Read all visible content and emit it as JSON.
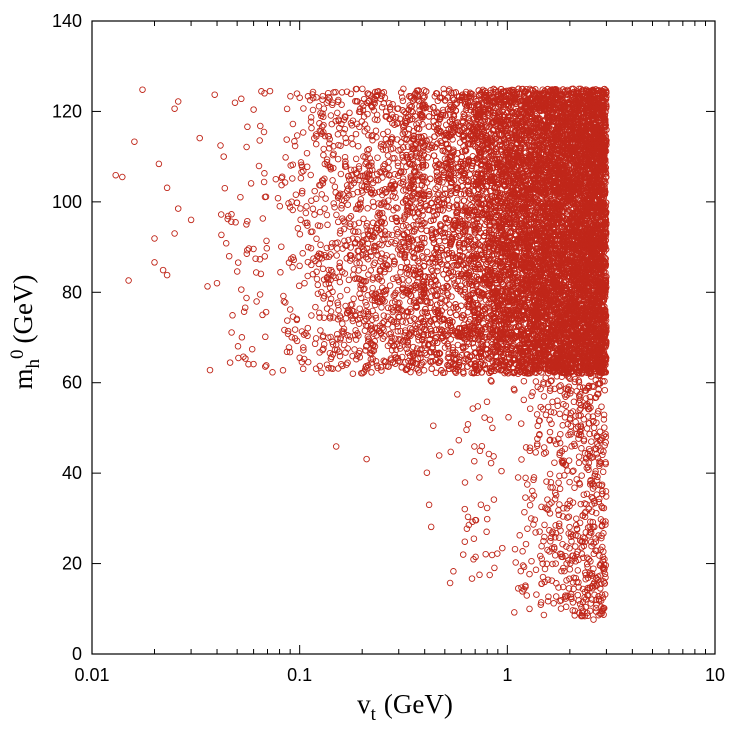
{
  "chart_data": {
    "type": "scatter",
    "title": "",
    "xlabel": {
      "main": "v",
      "sub": "t",
      "unit": "(GeV)"
    },
    "ylabel": {
      "main": "m",
      "sub": "h",
      "sup": "0",
      "unit": "(GeV)"
    },
    "x_scale": "log",
    "xlim": [
      0.01,
      10
    ],
    "ylim": [
      0,
      140
    ],
    "x_ticks": [
      0.01,
      0.1,
      1,
      10
    ],
    "x_tick_labels": [
      "0.01",
      "0.1",
      "1",
      "10"
    ],
    "y_ticks": [
      0,
      20,
      40,
      60,
      80,
      100,
      120,
      140
    ],
    "y_tick_labels": [
      "0",
      "20",
      "40",
      "60",
      "80",
      "100",
      "120",
      "140"
    ],
    "grid": false,
    "legend": "none",
    "marker": "open-circle",
    "series_color": "#c0271a",
    "points": [
      {
        "x": 0.0175,
        "y": 124.8
      },
      {
        "x": 0.039,
        "y": 123.7
      },
      {
        "x": 0.026,
        "y": 122.2
      },
      {
        "x": 0.025,
        "y": 120.6
      },
      {
        "x": 0.016,
        "y": 113.3
      },
      {
        "x": 0.033,
        "y": 114.1
      },
      {
        "x": 0.021,
        "y": 108.4
      },
      {
        "x": 0.013,
        "y": 105.9
      },
      {
        "x": 0.014,
        "y": 105.5
      },
      {
        "x": 0.023,
        "y": 103.1
      },
      {
        "x": 0.026,
        "y": 98.5
      },
      {
        "x": 0.03,
        "y": 96.0
      },
      {
        "x": 0.045,
        "y": 96.2
      },
      {
        "x": 0.025,
        "y": 93.0
      },
      {
        "x": 0.02,
        "y": 91.9
      },
      {
        "x": 0.042,
        "y": 92.7
      },
      {
        "x": 0.02,
        "y": 86.6
      },
      {
        "x": 0.022,
        "y": 84.9
      },
      {
        "x": 0.023,
        "y": 83.8
      },
      {
        "x": 0.015,
        "y": 82.6
      },
      {
        "x": 0.036,
        "y": 81.3
      },
      {
        "x": 0.04,
        "y": 82.0
      },
      {
        "x": 0.047,
        "y": 71.1
      },
      {
        "x": 0.037,
        "y": 62.8
      },
      {
        "x": 0.054,
        "y": 75.7
      },
      {
        "x": 0.05,
        "y": 84.6
      },
      {
        "x": 0.056,
        "y": 116.6
      },
      {
        "x": 0.06,
        "y": 120.4
      },
      {
        "x": 0.072,
        "y": 124.5
      },
      {
        "x": 0.074,
        "y": 62.3
      },
      {
        "x": 0.12,
        "y": 63.1
      },
      {
        "x": 0.15,
        "y": 45.9
      },
      {
        "x": 0.21,
        "y": 43.1
      },
      {
        "x": 0.44,
        "y": 50.5
      },
      {
        "x": 0.47,
        "y": 43.9
      },
      {
        "x": 0.41,
        "y": 40.1
      },
      {
        "x": 0.42,
        "y": 33.0
      },
      {
        "x": 0.43,
        "y": 28.1
      },
      {
        "x": 0.55,
        "y": 18.3
      },
      {
        "x": 0.53,
        "y": 15.7
      },
      {
        "x": 0.69,
        "y": 25.5
      },
      {
        "x": 1.08,
        "y": 9.2
      },
      {
        "x": 1.2,
        "y": 14.3
      },
      {
        "x": 1.45,
        "y": 10.9
      },
      {
        "x": 2.3,
        "y": 8.4
      },
      {
        "x": 2.6,
        "y": 7.6
      },
      {
        "x": 2.9,
        "y": 10.2
      },
      {
        "x": 1.9,
        "y": 12.6
      },
      {
        "x": 2.9,
        "y": 26.7
      },
      {
        "x": 2.7,
        "y": 47.9
      },
      {
        "x": 2.5,
        "y": 55.8
      }
    ],
    "density_regions": [
      {
        "x_range": [
          0.3,
          3.0
        ],
        "y_range": [
          62,
          125
        ],
        "count": 12000,
        "x_weight": 2.2
      },
      {
        "x_range": [
          0.07,
          0.4
        ],
        "y_range": [
          62,
          125
        ],
        "count": 1300,
        "x_weight": 2.0
      },
      {
        "x_range": [
          0.9,
          3.0
        ],
        "y_range": [
          8,
          62
        ],
        "count": 600,
        "x_weight": 2.5
      },
      {
        "x_range": [
          0.5,
          0.9
        ],
        "y_range": [
          15,
          62
        ],
        "count": 45,
        "x_weight": 1.5
      },
      {
        "x_range": [
          0.04,
          0.07
        ],
        "y_range": [
          62,
          125
        ],
        "count": 60,
        "x_weight": 1.5
      }
    ]
  }
}
